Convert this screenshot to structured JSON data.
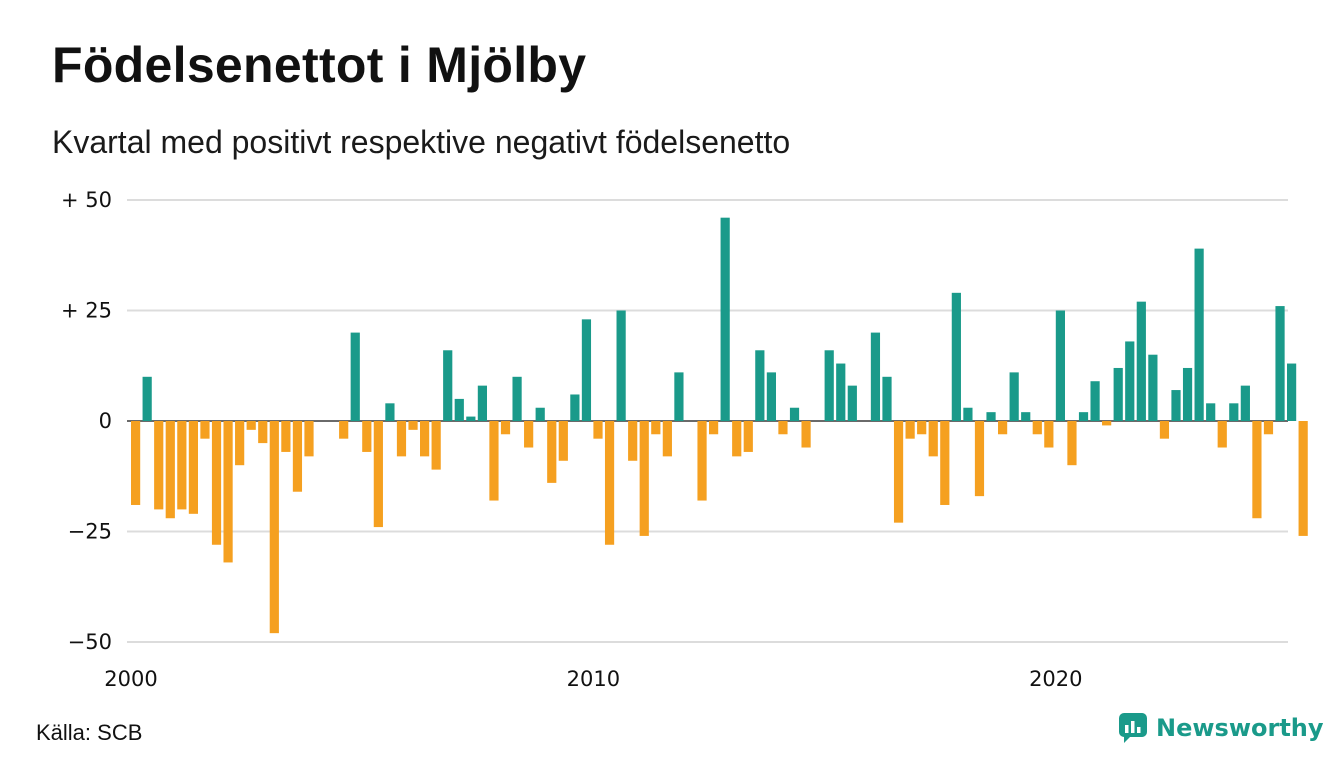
{
  "header": {
    "title": "Födelsenettot i Mjölby",
    "subtitle": "Kvartal med positivt respektive negativt födelsenetto"
  },
  "footer": {
    "source": "Källa: SCB",
    "brand": "Newsworthy",
    "brand_icon": "newsworthy-logo-icon"
  },
  "colors": {
    "positive": "#1a9a8a",
    "negative": "#f5a020",
    "grid": "#dcdcdc",
    "brand": "#1a9a8a"
  },
  "chart_data": {
    "type": "bar",
    "x_start_year": 2000,
    "periods_per_year": 4,
    "values": [
      -19,
      10,
      -20,
      -22,
      -20,
      -21,
      -4,
      -28,
      -32,
      -10,
      -2,
      -5,
      -48,
      -7,
      -16,
      -8,
      0,
      0,
      -4,
      20,
      -7,
      -24,
      4,
      -8,
      -2,
      -8,
      -11,
      16,
      5,
      1,
      8,
      -18,
      -3,
      10,
      -6,
      3,
      -14,
      -9,
      6,
      23,
      -4,
      -28,
      25,
      -9,
      -26,
      -3,
      -8,
      11,
      0,
      -18,
      -3,
      46,
      -8,
      -7,
      16,
      11,
      -3,
      3,
      -6,
      0,
      16,
      13,
      8,
      0,
      20,
      10,
      -23,
      -4,
      -3,
      -8,
      -19,
      29,
      3,
      -17,
      2,
      -3,
      11,
      2,
      -3,
      -6,
      25,
      -10,
      2,
      9,
      -1,
      12,
      18,
      27,
      15,
      -4,
      7,
      12,
      39,
      4,
      -6,
      4,
      8,
      -22,
      -3,
      26,
      13,
      -26
    ],
    "y_ticks": [
      {
        "value": 50,
        "label": "+ 50"
      },
      {
        "value": 25,
        "label": "+ 25"
      },
      {
        "value": 0,
        "label": "0"
      },
      {
        "value": -25,
        "label": "−25"
      },
      {
        "value": -50,
        "label": "−50"
      }
    ],
    "x_ticks": [
      {
        "value": 2000,
        "label": "2000"
      },
      {
        "value": 2010,
        "label": "2010"
      },
      {
        "value": 2020,
        "label": "2020"
      }
    ],
    "ylim": [
      -50,
      50
    ],
    "xlim": [
      2000,
      2025.25
    ],
    "grid": true,
    "legend": "none"
  }
}
